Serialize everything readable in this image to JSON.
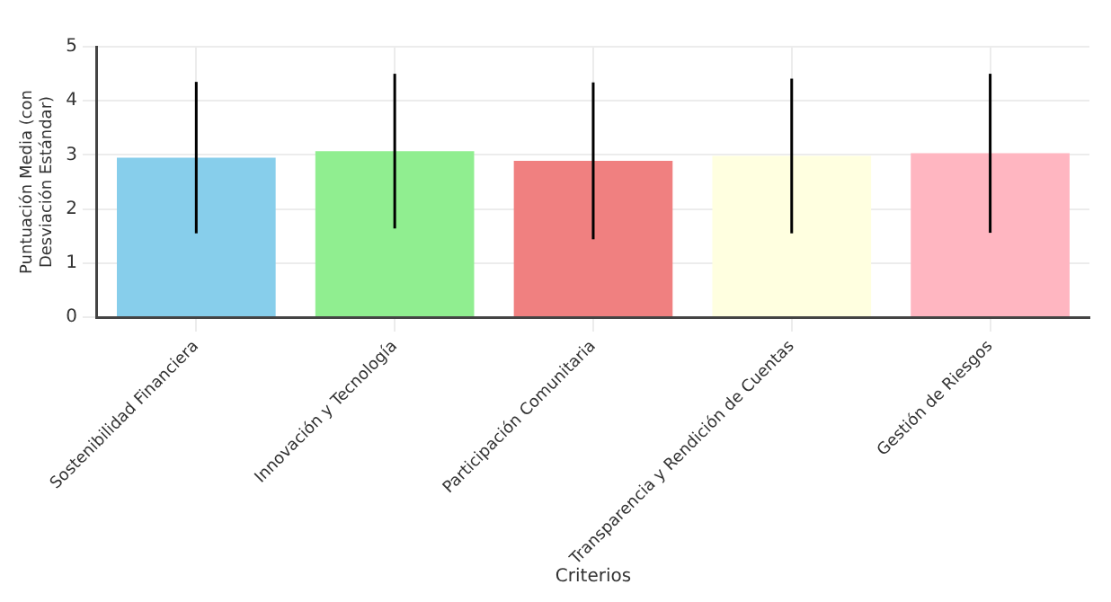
{
  "chart_data": {
    "type": "bar",
    "xlabel": "Criterios",
    "ylabel": "Puntuación Media (con Desviación Estándar)",
    "categories": [
      "Sostenibilidad Financiera",
      "Innovación y Tecnología",
      "Participación Comunitaria",
      "Transparencia y Rendición de Cuentas",
      "Gestión de Riesgos"
    ],
    "values": [
      2.95,
      3.07,
      2.89,
      2.98,
      3.03
    ],
    "errors": [
      1.4,
      1.43,
      1.45,
      1.43,
      1.47
    ],
    "colors": [
      "#87ceeb",
      "#90ee90",
      "#f08080",
      "#ffffe0",
      "#ffb6c1"
    ],
    "ylim": [
      0,
      5
    ],
    "yticks": [
      0,
      1,
      2,
      3,
      4,
      5
    ],
    "grid": true,
    "legend": false
  }
}
